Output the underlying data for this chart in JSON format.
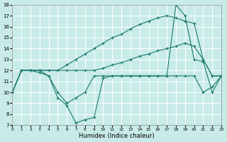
{
  "x": [
    0,
    1,
    2,
    3,
    4,
    5,
    6,
    7,
    8,
    9,
    10,
    11,
    12,
    13,
    14,
    15,
    16,
    17,
    18,
    19,
    20,
    21,
    22,
    23
  ],
  "line1_y": [
    10,
    12,
    12,
    12,
    11.5,
    10,
    9,
    9.5,
    10,
    11.5,
    11.5,
    11.5,
    11.5,
    11.5,
    11.5,
    11.5,
    11.5,
    11.5,
    11.5,
    11.5,
    11.5,
    10,
    10.5,
    11.5
  ],
  "line2_y": [
    10,
    12,
    12,
    12,
    12,
    12,
    12,
    12,
    12,
    12,
    12.2,
    12.5,
    12.7,
    13.0,
    13.3,
    13.5,
    13.8,
    14.0,
    14.2,
    14.5,
    14.2,
    13.0,
    11.5,
    11.5
  ],
  "line3_y": [
    10,
    12,
    12,
    12,
    12,
    12,
    12.5,
    13.0,
    13.5,
    14.0,
    14.5,
    15.0,
    15.3,
    15.8,
    16.2,
    16.5,
    16.8,
    17.0,
    16.8,
    16.5,
    16.3,
    13.0,
    11.5,
    11.5
  ],
  "line4_y": [
    10,
    12,
    12,
    11.8,
    11.5,
    9.5,
    8.8,
    7.2,
    7.5,
    7.7,
    11.3,
    11.5,
    11.5,
    11.5,
    11.5,
    11.5,
    11.5,
    11.5,
    18.0,
    17.0,
    13.0,
    12.8,
    10,
    11.5
  ],
  "color": "#1a7a6e",
  "bg_color": "#c8ebe8",
  "grid_color": "#ffffff",
  "xlabel": "Humidex (Indice chaleur)",
  "ylim": [
    7,
    18
  ],
  "xlim": [
    0,
    23
  ],
  "yticks": [
    7,
    8,
    9,
    10,
    11,
    12,
    13,
    14,
    15,
    16,
    17,
    18
  ],
  "xticks": [
    0,
    1,
    2,
    3,
    4,
    5,
    6,
    7,
    8,
    9,
    10,
    11,
    12,
    13,
    14,
    15,
    16,
    17,
    18,
    19,
    20,
    21,
    22,
    23
  ]
}
